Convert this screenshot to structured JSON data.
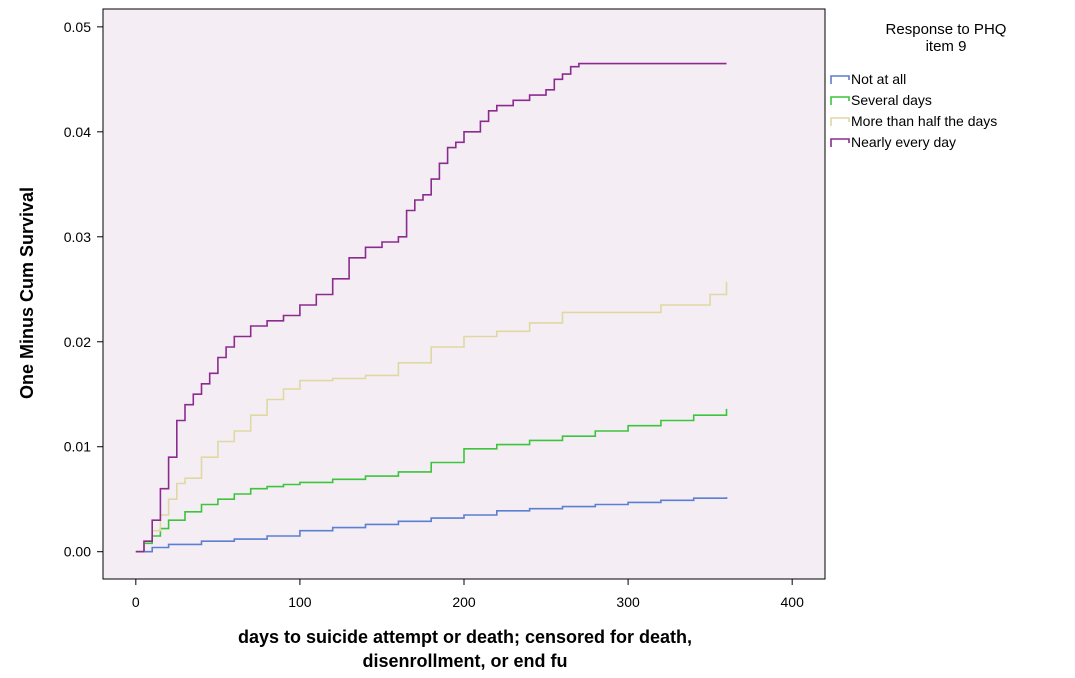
{
  "chart_data": {
    "type": "line",
    "subtype": "step",
    "title": "",
    "xlabel_lines": [
      "days to suicide attempt or death; censored for death,",
      "disenrollment, or end fu"
    ],
    "ylabel": "One Minus Cum Survival",
    "xlim": [
      -20,
      420
    ],
    "ylim": [
      -0.0026,
      0.0517
    ],
    "x_ticks": [
      0,
      100,
      200,
      300,
      400
    ],
    "x_tick_labels": [
      "0",
      "100",
      "200",
      "300",
      "400"
    ],
    "y_ticks": [
      0.0,
      0.01,
      0.02,
      0.03,
      0.04,
      0.05
    ],
    "y_tick_labels": [
      "0.00",
      "0.01",
      "0.02",
      "0.03",
      "0.04",
      "0.05"
    ],
    "grid": false,
    "plot_background": "#f4eef4",
    "legend": {
      "title_lines": [
        "Response to PHQ",
        "item 9"
      ],
      "position": "right",
      "entries": [
        "Not at all",
        "Several days",
        "More than half the days",
        "Nearly every day"
      ]
    },
    "series": [
      {
        "name": "Not at all",
        "color": "#5b7fd1",
        "x": [
          0,
          10,
          20,
          40,
          60,
          80,
          100,
          120,
          140,
          160,
          180,
          200,
          220,
          240,
          260,
          280,
          300,
          320,
          340,
          360
        ],
        "y": [
          0,
          0.0004,
          0.0007,
          0.001,
          0.0012,
          0.0015,
          0.002,
          0.0023,
          0.0026,
          0.0029,
          0.0032,
          0.0035,
          0.0039,
          0.0041,
          0.0043,
          0.0045,
          0.0047,
          0.0049,
          0.0051,
          0.0052
        ]
      },
      {
        "name": "Several days",
        "color": "#3cc43c",
        "x": [
          0,
          5,
          10,
          15,
          20,
          30,
          40,
          50,
          60,
          70,
          80,
          90,
          100,
          120,
          140,
          160,
          180,
          200,
          220,
          240,
          260,
          280,
          300,
          320,
          340,
          360
        ],
        "y": [
          0,
          0.0008,
          0.0015,
          0.0022,
          0.003,
          0.0038,
          0.0045,
          0.005,
          0.0055,
          0.006,
          0.0062,
          0.0064,
          0.0066,
          0.0069,
          0.0072,
          0.0076,
          0.0085,
          0.0098,
          0.0102,
          0.0106,
          0.011,
          0.0115,
          0.012,
          0.0125,
          0.013,
          0.0136
        ]
      },
      {
        "name": "More than half the days",
        "color": "#e0d7a2",
        "x": [
          0,
          5,
          10,
          15,
          20,
          25,
          30,
          40,
          50,
          60,
          70,
          80,
          90,
          100,
          120,
          140,
          160,
          180,
          200,
          220,
          240,
          260,
          280,
          300,
          320,
          340,
          350,
          360
        ],
        "y": [
          0,
          0.001,
          0.002,
          0.0035,
          0.005,
          0.0065,
          0.007,
          0.009,
          0.0105,
          0.0115,
          0.013,
          0.0145,
          0.0155,
          0.0163,
          0.0165,
          0.0168,
          0.018,
          0.0195,
          0.0205,
          0.021,
          0.0218,
          0.0228,
          0.0228,
          0.0228,
          0.0235,
          0.0235,
          0.0245,
          0.0257
        ]
      },
      {
        "name": "Nearly every day",
        "color": "#8b2b8f",
        "x": [
          0,
          5,
          10,
          15,
          20,
          25,
          30,
          35,
          40,
          45,
          50,
          55,
          60,
          70,
          80,
          90,
          100,
          110,
          120,
          130,
          140,
          150,
          160,
          165,
          170,
          175,
          180,
          185,
          190,
          195,
          200,
          210,
          215,
          220,
          230,
          240,
          250,
          255,
          260,
          265,
          270,
          360
        ],
        "y": [
          0,
          0.001,
          0.003,
          0.006,
          0.009,
          0.0125,
          0.014,
          0.015,
          0.016,
          0.017,
          0.0185,
          0.0195,
          0.0205,
          0.0215,
          0.022,
          0.0225,
          0.0235,
          0.0245,
          0.026,
          0.028,
          0.029,
          0.0295,
          0.03,
          0.0325,
          0.0335,
          0.034,
          0.0355,
          0.037,
          0.0385,
          0.039,
          0.04,
          0.041,
          0.042,
          0.0425,
          0.043,
          0.0435,
          0.044,
          0.045,
          0.0455,
          0.0462,
          0.0465,
          0.0465
        ]
      }
    ]
  }
}
